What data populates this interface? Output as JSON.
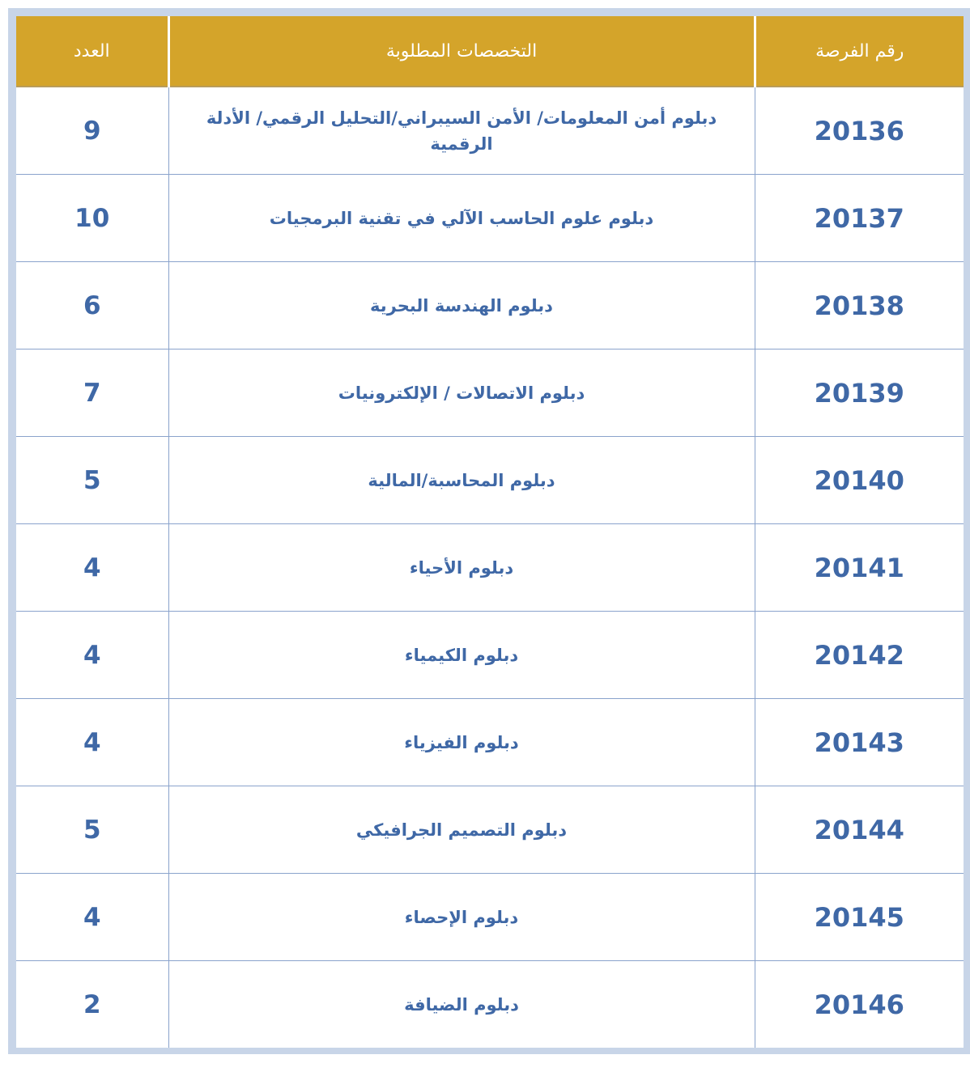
{
  "colors": {
    "header_bg": "#d4a42a",
    "text": "#3f68a6",
    "border": "#c8d5e8"
  },
  "headers": {
    "id": "رقم الفرصة",
    "specialization": "التخصصات المطلوبة",
    "count": "العدد"
  },
  "rows": [
    {
      "id": "20136",
      "specialization": "دبلوم أمن المعلومات/ الأمن السيبراني/التحليل الرقمي/ الأدلة الرقمية",
      "count": "9"
    },
    {
      "id": "20137",
      "specialization": "دبلوم علوم الحاسب الآلي في تقنية البرمجيات",
      "count": "10"
    },
    {
      "id": "20138",
      "specialization": "دبلوم الهندسة البحرية",
      "count": "6"
    },
    {
      "id": "20139",
      "specialization": "دبلوم الاتصالات / الإلكترونيات",
      "count": "7"
    },
    {
      "id": "20140",
      "specialization": "دبلوم المحاسبة/المالية",
      "count": "5"
    },
    {
      "id": "20141",
      "specialization": "دبلوم الأحياء",
      "count": "4"
    },
    {
      "id": "20142",
      "specialization": "دبلوم الكيمياء",
      "count": "4"
    },
    {
      "id": "20143",
      "specialization": "دبلوم الفيزياء",
      "count": "4"
    },
    {
      "id": "20144",
      "specialization": "دبلوم التصميم الجرافيكي",
      "count": "5"
    },
    {
      "id": "20145",
      "specialization": "دبلوم الإحصاء",
      "count": "4"
    },
    {
      "id": "20146",
      "specialization": "دبلوم الضيافة",
      "count": "2"
    }
  ]
}
